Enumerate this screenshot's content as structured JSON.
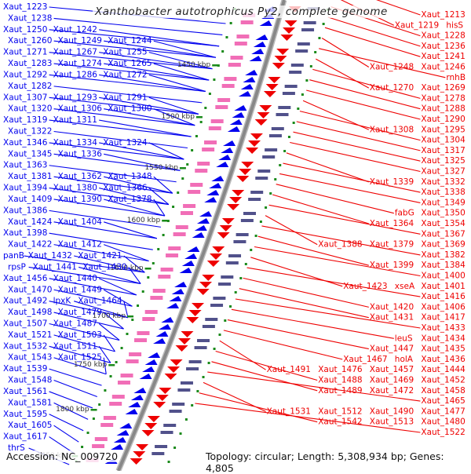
{
  "title": "Xanthobacter autotrophicus Py2, complete genome",
  "footer": {
    "accession": "Accession: NC_009720",
    "stats": "Topology: circular; Length: 5,308,934 bp; Genes: 4,805"
  },
  "colors": {
    "forward_strand": "#0000ee",
    "reverse_strand": "#ee0000",
    "tick_marker": "#1a8a1a",
    "backbone": "#888888"
  },
  "scale_ticks": [
    "1450 kbp",
    "1500 kbp",
    "1550 kbp",
    "1600 kbp",
    "1650 kbp",
    "1700 kbp",
    "1750 kbp",
    "1800 kbp",
    "1850 kbp"
  ],
  "left_labels": [
    [
      "Xaut_1223"
    ],
    [
      "Xaut_1238"
    ],
    [
      "Xaut_1250",
      "Xaut_1242"
    ],
    [
      "Xaut_1260",
      "Xaut_1249",
      "Xaut_1244"
    ],
    [
      "Xaut_1271",
      "Xaut_1267",
      "Xaut_1255"
    ],
    [
      "Xaut_1283",
      "Xaut_1274",
      "Xaut_1265"
    ],
    [
      "Xaut_1292",
      "Xaut_1286",
      "Xaut_1272"
    ],
    [
      "Xaut_1282"
    ],
    [
      "Xaut_1307",
      "Xaut_1293",
      "Xaut_1291"
    ],
    [
      "Xaut_1320",
      "Xaut_1306",
      "Xaut_1300"
    ],
    [
      "Xaut_1319",
      "Xaut_1311"
    ],
    [
      "Xaut_1322"
    ],
    [
      "Xaut_1346",
      "Xaut_1334",
      "Xaut_1324"
    ],
    [
      "Xaut_1345",
      "Xaut_1336"
    ],
    [
      "Xaut_1363"
    ],
    [
      "Xaut_1381",
      "Xaut_1362",
      "Xaut_1348"
    ],
    [
      "Xaut_1394",
      "Xaut_1380",
      "Xaut_1366"
    ],
    [
      "Xaut_1409",
      "Xaut_1390",
      "Xaut_1378"
    ],
    [
      "Xaut_1386"
    ],
    [
      "Xaut_1424",
      "Xaut_1404"
    ],
    [
      "Xaut_1398"
    ],
    [
      "Xaut_1422",
      "Xaut_1412"
    ],
    [
      "panB",
      "Xaut_1432",
      "Xaut_1421"
    ],
    [
      "rpsP",
      "Xaut_1441",
      "Xaut_1430"
    ],
    [
      "Xaut_1456",
      "Xaut_1440"
    ],
    [
      "Xaut_1470",
      "Xaut_1449"
    ],
    [
      "Xaut_1492",
      "lpxK",
      "Xaut_1464"
    ],
    [
      "Xaut_1498",
      "Xaut_1479"
    ],
    [
      "Xaut_1507",
      "Xaut_1487"
    ],
    [
      "Xaut_1521",
      "Xaut_1503"
    ],
    [
      "Xaut_1532",
      "Xaut_1511"
    ],
    [
      "Xaut_1543",
      "Xaut_1525"
    ],
    [
      "Xaut_1539"
    ],
    [
      "Xaut_1548"
    ],
    [
      "Xaut_1561"
    ],
    [
      "Xaut_1581"
    ],
    [
      "Xaut_1595"
    ],
    [
      "Xaut_1605"
    ],
    [
      "Xaut_1617"
    ],
    [
      "thrS"
    ]
  ],
  "right_labels": [
    [
      "Xaut_1213"
    ],
    [
      "Xaut_1219",
      "hisS"
    ],
    [
      "Xaut_1228"
    ],
    [
      "Xaut_1236"
    ],
    [
      "Xaut_1241"
    ],
    [
      "Xaut_1248",
      "Xaut_1246"
    ],
    [
      "rnhB"
    ],
    [
      "Xaut_1270",
      "Xaut_1269"
    ],
    [
      "Xaut_1278"
    ],
    [
      "Xaut_1288"
    ],
    [
      "Xaut_1290"
    ],
    [
      "Xaut_1308",
      "Xaut_1295"
    ],
    [
      "Xaut_1304"
    ],
    [
      "Xaut_1317"
    ],
    [
      "Xaut_1325"
    ],
    [
      "Xaut_1327"
    ],
    [
      "Xaut_1339",
      "Xaut_1332"
    ],
    [
      "Xaut_1338"
    ],
    [
      "Xaut_1349"
    ],
    [
      "fabG",
      "Xaut_1350"
    ],
    [
      "Xaut_1364",
      "Xaut_1354"
    ],
    [
      "Xaut_1367"
    ],
    [
      "Xaut_1388",
      "Xaut_1379",
      "Xaut_1369"
    ],
    [
      "Xaut_1382"
    ],
    [
      "Xaut_1399",
      "Xaut_1384"
    ],
    [
      "Xaut_1400"
    ],
    [
      "Xaut_1423",
      "xseA",
      "Xaut_1401"
    ],
    [
      "Xaut_1416"
    ],
    [
      "Xaut_1420",
      "Xaut_1406"
    ],
    [
      "Xaut_1431",
      "Xaut_1417"
    ],
    [
      "Xaut_1433"
    ],
    [
      "leuS",
      "Xaut_1434"
    ],
    [
      "Xaut_1447",
      "Xaut_1435"
    ],
    [
      "Xaut_1467",
      "holA",
      "Xaut_1436"
    ],
    [
      "Xaut_1491",
      "Xaut_1476",
      "Xaut_1457",
      "Xaut_1444"
    ],
    [
      "Xaut_1488",
      "Xaut_1469",
      "Xaut_1452"
    ],
    [
      "Xaut_1489",
      "Xaut_1472",
      "Xaut_1458"
    ],
    [
      "Xaut_1465"
    ],
    [
      "Xaut_1531",
      "Xaut_1512",
      "Xaut_1490",
      "Xaut_1477"
    ],
    [
      "Xaut_1542",
      "Xaut_1513",
      "Xaut_1480"
    ],
    [
      "Xaut_1522"
    ]
  ]
}
